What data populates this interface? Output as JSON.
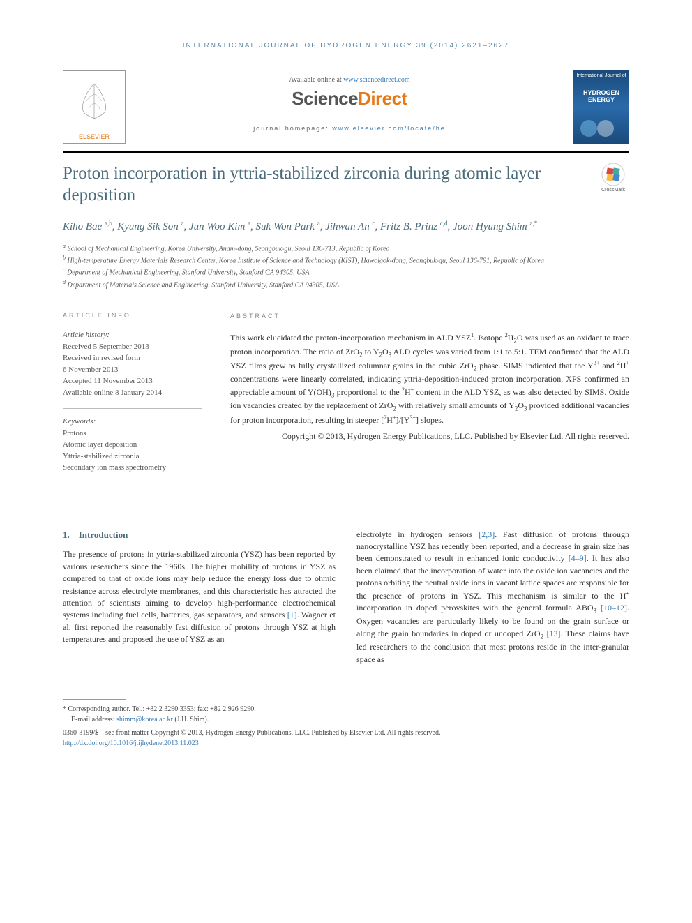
{
  "runningHead": "INTERNATIONAL JOURNAL OF HYDROGEN ENERGY 39 (2014) 2621–2627",
  "masthead": {
    "elsevierLabel": "ELSEVIER",
    "availableText": "Available online at ",
    "availableLink": "www.sciencedirect.com",
    "sdLogo1": "Science",
    "sdLogo2": "Direct",
    "homepagePrefix": "journal homepage: ",
    "homepageLink": "www.elsevier.com/locate/he",
    "coverJournalLine1": "International Journal of",
    "coverJournalLine2": "HYDROGEN",
    "coverJournalLine3": "ENERGY"
  },
  "title": "Proton incorporation in yttria-stabilized zirconia during atomic layer deposition",
  "crossmarkLabel": "CrossMark",
  "authors": "Kiho Bae <sup>a,b</sup>, Kyung Sik Son <sup>a</sup>, Jun Woo Kim <sup>a</sup>, Suk Won Park <sup>a</sup>, Jihwan An <sup>c</sup>, Fritz B. Prinz <sup>c,d</sup>, Joon Hyung Shim <sup>a,*</sup>",
  "affiliations": [
    "<sup>a</sup> School of Mechanical Engineering, Korea University, Anam-dong, Seongbuk-gu, Seoul 136-713, Republic of Korea",
    "<sup>b</sup> High-temperature Energy Materials Research Center, Korea Institute of Science and Technology (KIST), Hawolgok-dong, Seongbuk-gu, Seoul 136-791, Republic of Korea",
    "<sup>c</sup> Department of Mechanical Engineering, Stanford University, Stanford CA 94305, USA",
    "<sup>d</sup> Department of Materials Science and Engineering, Stanford University, Stanford CA 94305, USA"
  ],
  "articleInfo": {
    "infoHead": "ARTICLE INFO",
    "historyLabel": "Article history:",
    "historyLines": [
      "Received 5 September 2013",
      "Received in revised form",
      "6 November 2013",
      "Accepted 11 November 2013",
      "Available online 8 January 2014"
    ],
    "keywordsLabel": "Keywords:",
    "keywordsLines": [
      "Protons",
      "Atomic layer deposition",
      "Yttria-stabilized zirconia",
      "Secondary ion mass spectrometry"
    ]
  },
  "abstract": {
    "head": "ABSTRACT",
    "text": "This work elucidated the proton-incorporation mechanism in ALD YSZ<sup>1</sup>. Isotope <sup>2</sup>H<sub>2</sub>O was used as an oxidant to trace proton incorporation. The ratio of ZrO<sub>2</sub> to Y<sub>2</sub>O<sub>3</sub> ALD cycles was varied from 1:1 to 5:1. TEM confirmed that the ALD YSZ films grew as fully crystallized columnar grains in the cubic ZrO<sub>2</sub> phase. SIMS indicated that the Y<sup>3+</sup> and <sup>2</sup>H<sup>+</sup> concentrations were linearly correlated, indicating yttria-deposition-induced proton incorporation. XPS confirmed an appreciable amount of Y(OH)<sub>3</sub> proportional to the <sup>2</sup>H<sup>+</sup> content in the ALD YSZ, as was also detected by SIMS. Oxide ion vacancies created by the replacement of ZrO<sub>2</sub> with relatively small amounts of Y<sub>2</sub>O<sub>3</sub> provided additional vacancies for proton incorporation, resulting in steeper [<sup>2</sup>H<sup>+</sup>]/[Y<sup>3+</sup>] slopes.",
    "copyright": "Copyright © 2013, Hydrogen Energy Publications, LLC. Published by Elsevier Ltd. All rights reserved."
  },
  "section1": {
    "head": "1. Introduction",
    "col1": "The presence of protons in yttria-stabilized zirconia (YSZ) has been reported by various researchers since the 1960s. The higher mobility of protons in YSZ as compared to that of oxide ions may help reduce the energy loss due to ohmic resistance across electrolyte membranes, and this characteristic has attracted the attention of scientists aiming to develop high-performance electrochemical systems including fuel cells, batteries, gas separators, and sensors <a>[1]</a>. Wagner et al. first reported the reasonably fast diffusion of protons through YSZ at high temperatures and proposed the use of YSZ as an",
    "col2": "electrolyte in hydrogen sensors <a>[2,3]</a>. Fast diffusion of protons through nanocrystalline YSZ has recently been reported, and a decrease in grain size has been demonstrated to result in enhanced ionic conductivity <a>[4–9]</a>. It has also been claimed that the incorporation of water into the oxide ion vacancies and the protons orbiting the neutral oxide ions in vacant lattice spaces are responsible for the presence of protons in YSZ. This mechanism is similar to the H<sup>+</sup> incorporation in doped perovskites with the general formula ABO<sub>3</sub> <a>[10–12]</a>. Oxygen vacancies are particularly likely to be found on the grain surface or along the grain boundaries in doped or undoped ZrO<sub>2</sub> <a>[13]</a>. These claims have led researchers to the conclusion that most protons reside in the inter-granular space as"
  },
  "footnote": {
    "corr": "* Corresponding author. Tel.: +82 2 3290 3353; fax: +82 2 926 9290.",
    "emailLabel": "E-mail address: ",
    "email": "shimm@korea.ac.kr",
    "emailSuffix": " (J.H. Shim).",
    "issn": "0360-3199/$ – see front matter Copyright © 2013, Hydrogen Energy Publications, LLC. Published by Elsevier Ltd. All rights reserved.",
    "doi": "http://dx.doi.org/10.1016/j.ijhydene.2013.11.023"
  },
  "colors": {
    "accent": "#4a6b7a",
    "link": "#3b7bb3",
    "orange": "#e67817",
    "coverBg": "#1a4a7a"
  }
}
